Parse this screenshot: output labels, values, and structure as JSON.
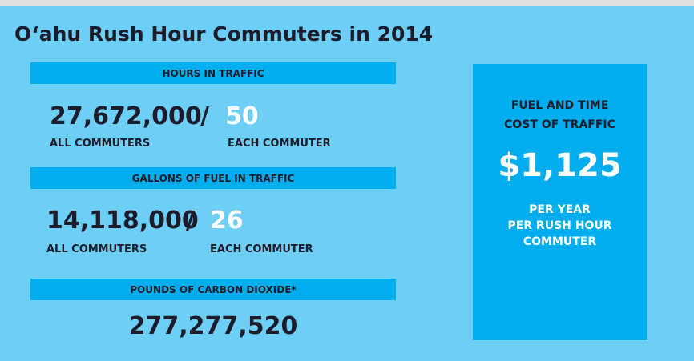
{
  "title": "O‘ahu Rush Hour Commuters in 2014",
  "sections": [
    {
      "heading": "HOURS IN TRAFFIC",
      "total": "27,672,000",
      "separator": "/",
      "per_commuter": "50",
      "total_label": "ALL COMMUTERS",
      "per_label": "EACH COMMUTER"
    },
    {
      "heading": "GALLONS OF FUEL IN TRAFFIC",
      "total": "14,118,000",
      "separator": "/",
      "per_commuter": "26",
      "total_label": "ALL COMMUTERS",
      "per_label": "EACH COMMUTER"
    },
    {
      "heading": "POUNDS OF CARBON DIOXIDE*",
      "total": "277,277,520"
    }
  ],
  "side": {
    "heading": [
      "FUEL AND TIME",
      "COST OF TRAFFIC"
    ],
    "amount": "$1,125",
    "caption": [
      "PER YEAR",
      "PER RUSH HOUR",
      "COMMUTER"
    ]
  }
}
